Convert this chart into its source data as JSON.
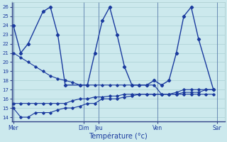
{
  "background_color": "#cce9ed",
  "grid_color": "#b0d4d8",
  "line_color": "#1a3a9e",
  "xlabel": "Température (°c)",
  "x_day_labels": [
    "Mer",
    "Dim",
    "Jeu",
    "Ven",
    "Sar"
  ],
  "x_day_positions": [
    0,
    9.5,
    11.5,
    19.5,
    27.5
  ],
  "xlim": [
    -0.2,
    28.5
  ],
  "ylim": [
    13.5,
    26.5
  ],
  "yticks": [
    14,
    15,
    16,
    17,
    18,
    19,
    20,
    21,
    22,
    23,
    24,
    25,
    26
  ],
  "series": [
    {
      "x": [
        0,
        1,
        2,
        4,
        5,
        6,
        7,
        9,
        10,
        11,
        12,
        13,
        14,
        15,
        16,
        17,
        18,
        19,
        20,
        21,
        22,
        23,
        24,
        25,
        27
      ],
      "y": [
        24,
        21,
        22,
        25.5,
        26,
        23,
        17.5,
        17.5,
        17.5,
        21,
        24.5,
        26,
        23,
        19.5,
        17.5,
        17.5,
        17.5,
        18,
        17.5,
        18,
        21,
        25,
        26,
        22.5,
        17
      ]
    },
    {
      "x": [
        0,
        1,
        2,
        3,
        4,
        5,
        6,
        7,
        8,
        9,
        10,
        11,
        12,
        13,
        14,
        15,
        16,
        17,
        18,
        19,
        20,
        21,
        22,
        23,
        24,
        25,
        26,
        27
      ],
      "y": [
        21,
        20.5,
        20,
        19.5,
        19,
        18.5,
        18.2,
        18,
        17.8,
        17.5,
        17.5,
        17.5,
        17.5,
        17.5,
        17.5,
        17.5,
        17.5,
        17.5,
        17.5,
        17.5,
        16.5,
        16.5,
        16.7,
        17,
        17,
        17,
        17,
        17
      ]
    },
    {
      "x": [
        0,
        1,
        2,
        3,
        4,
        5,
        6,
        7,
        8,
        9,
        10,
        11,
        12,
        13,
        14,
        15,
        16,
        17,
        18,
        19,
        20,
        21,
        22,
        23,
        24,
        25,
        26,
        27
      ],
      "y": [
        15.5,
        15.5,
        15.5,
        15.5,
        15.5,
        15.5,
        15.5,
        15.5,
        15.8,
        16,
        16,
        16.2,
        16.2,
        16.3,
        16.3,
        16.5,
        16.5,
        16.5,
        16.5,
        16.5,
        16.5,
        16.5,
        16.5,
        16.7,
        16.7,
        16.7,
        17,
        17
      ]
    },
    {
      "x": [
        0,
        1,
        2,
        3,
        4,
        5,
        6,
        7,
        8,
        9,
        10,
        11,
        12,
        13,
        14,
        15,
        16,
        17,
        18,
        19,
        20,
        21,
        22,
        23,
        24,
        25,
        26,
        27
      ],
      "y": [
        15,
        14,
        14,
        14.5,
        14.5,
        14.5,
        14.8,
        15,
        15,
        15.2,
        15.5,
        15.5,
        16,
        16,
        16,
        16.2,
        16.3,
        16.5,
        16.5,
        16.5,
        16.5,
        16.5,
        16.5,
        16.5,
        16.5,
        16.5,
        16.5,
        16.5
      ]
    }
  ]
}
